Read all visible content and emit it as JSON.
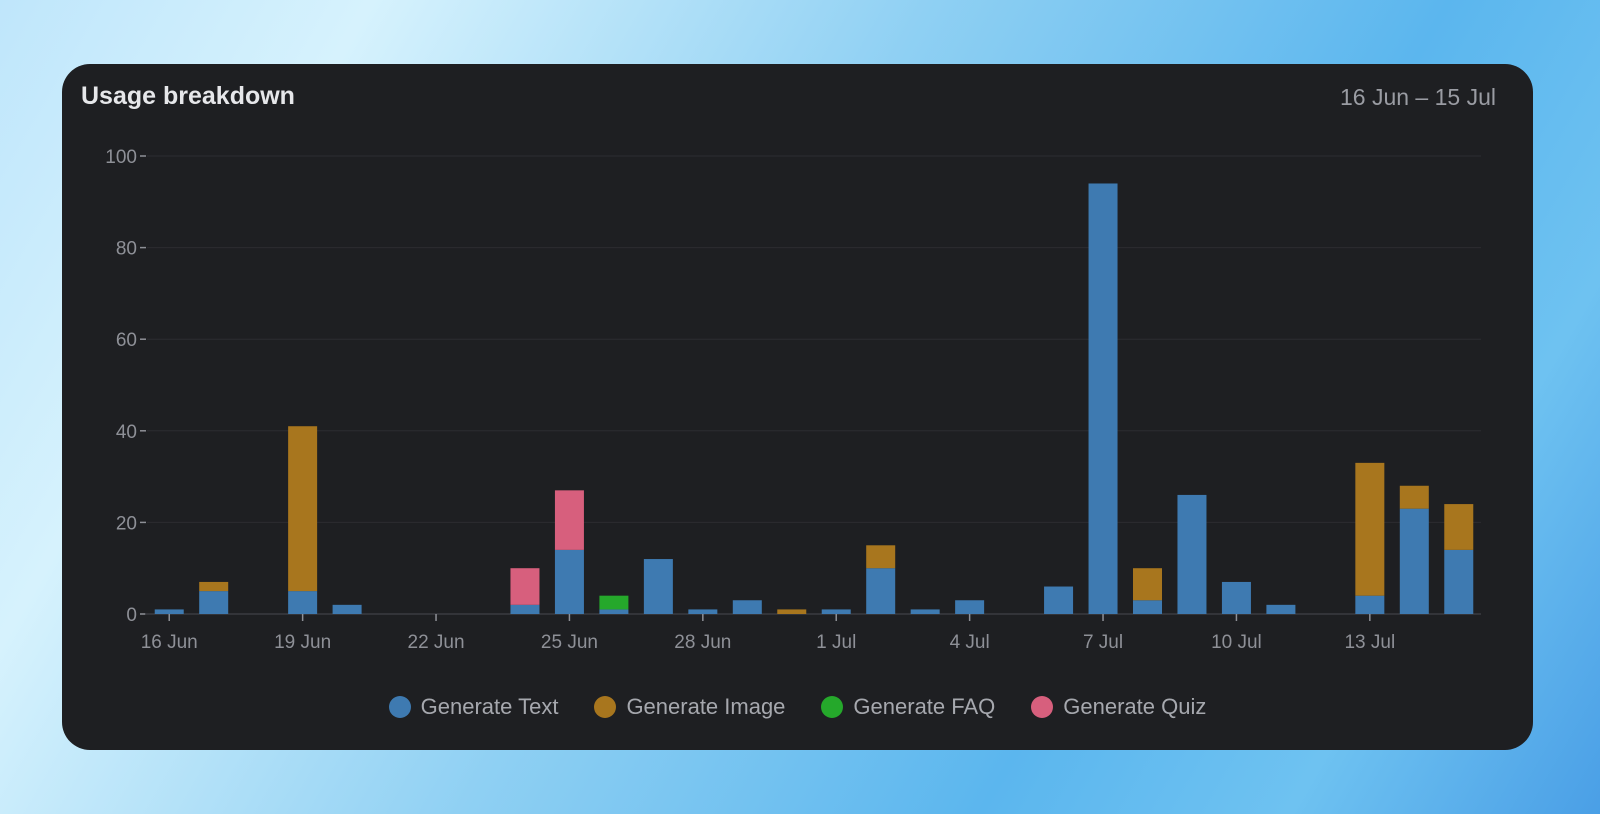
{
  "card": {
    "title": "Usage breakdown",
    "range": "16 Jun – 15 Jul"
  },
  "colors": {
    "text": "#3e7ab1",
    "image": "#a8761e",
    "faq": "#25a82b",
    "quiz": "#d75f7d",
    "grid": "#2c2d31",
    "axis": "#8e9097"
  },
  "chart_data": {
    "type": "bar",
    "stacked": true,
    "categories": [
      "16 Jun",
      "17 Jun",
      "18 Jun",
      "19 Jun",
      "20 Jun",
      "21 Jun",
      "22 Jun",
      "23 Jun",
      "24 Jun",
      "25 Jun",
      "26 Jun",
      "27 Jun",
      "28 Jun",
      "29 Jun",
      "30 Jun",
      "1 Jul",
      "2 Jul",
      "3 Jul",
      "4 Jul",
      "5 Jul",
      "6 Jul",
      "7 Jul",
      "8 Jul",
      "9 Jul",
      "10 Jul",
      "11 Jul",
      "12 Jul",
      "13 Jul",
      "14 Jul",
      "15 Jul"
    ],
    "x_tick_labels": [
      "16 Jun",
      "19 Jun",
      "22 Jun",
      "25 Jun",
      "28 Jun",
      "1 Jul",
      "4 Jul",
      "7 Jul",
      "10 Jul",
      "13 Jul"
    ],
    "x_tick_every": 3,
    "y_ticks": [
      0,
      20,
      40,
      60,
      80,
      100
    ],
    "ylim": [
      0,
      100
    ],
    "grid": true,
    "legend_position": "bottom",
    "series": [
      {
        "key": "text",
        "name": "Generate Text",
        "values": [
          1,
          5,
          0,
          5,
          2,
          0,
          0,
          0,
          2,
          14,
          1,
          12,
          1,
          3,
          0,
          1,
          10,
          1,
          3,
          0,
          6,
          94,
          3,
          26,
          7,
          2,
          0,
          4,
          23,
          14
        ]
      },
      {
        "key": "image",
        "name": "Generate Image",
        "values": [
          0,
          2,
          0,
          36,
          0,
          0,
          0,
          0,
          0,
          0,
          0,
          0,
          0,
          0,
          1,
          0,
          5,
          0,
          0,
          0,
          0,
          0,
          7,
          0,
          0,
          0,
          0,
          29,
          5,
          10
        ]
      },
      {
        "key": "faq",
        "name": "Generate FAQ",
        "values": [
          0,
          0,
          0,
          0,
          0,
          0,
          0,
          0,
          0,
          0,
          3,
          0,
          0,
          0,
          0,
          0,
          0,
          0,
          0,
          0,
          0,
          0,
          0,
          0,
          0,
          0,
          0,
          0,
          0,
          0
        ]
      },
      {
        "key": "quiz",
        "name": "Generate Quiz",
        "values": [
          0,
          0,
          0,
          0,
          0,
          0,
          0,
          0,
          8,
          13,
          0,
          0,
          0,
          0,
          0,
          0,
          0,
          0,
          0,
          0,
          0,
          0,
          0,
          0,
          0,
          0,
          0,
          0,
          0,
          0
        ]
      }
    ]
  }
}
